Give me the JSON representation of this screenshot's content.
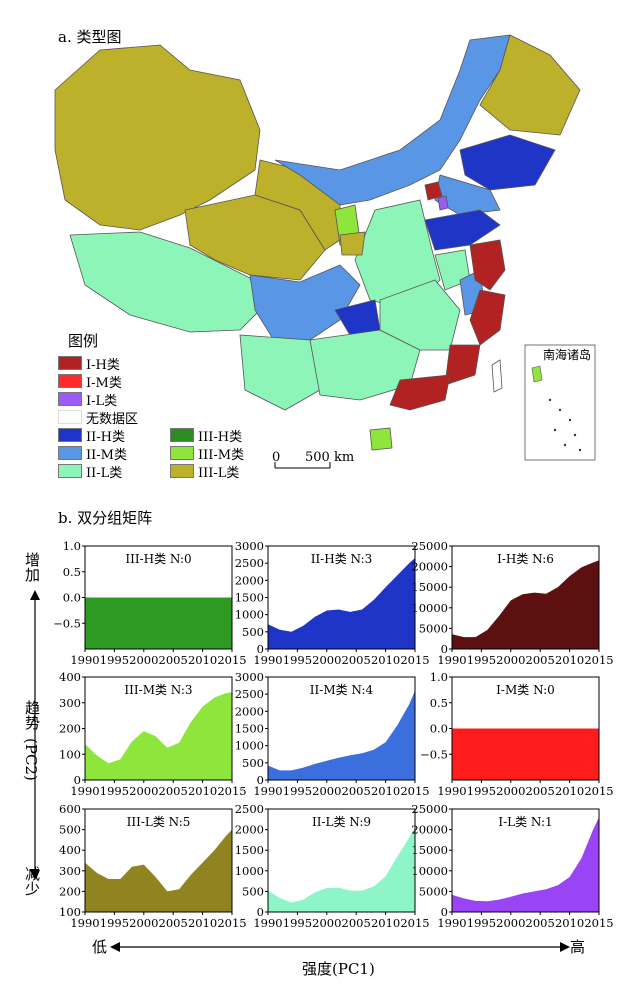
{
  "map": {
    "title": "a. 类型图",
    "legend_title": "图例",
    "inset_title": "南海诸岛",
    "scale_bar": {
      "zero": "0",
      "distance": "500 km"
    },
    "legend": [
      {
        "label": "I-H类",
        "color": "#b22222"
      },
      {
        "label": "I-M类",
        "color": "#ff2a2a"
      },
      {
        "label": "I-L类",
        "color": "#9a5cf5"
      },
      {
        "label": "无数据区",
        "color": "#ffffff"
      },
      {
        "label": "II-H类",
        "color": "#1f35c8"
      },
      {
        "label": "II-M类",
        "color": "#5a96e6"
      },
      {
        "label": "II-L类",
        "color": "#8ef5b8"
      },
      {
        "label": "III-H类",
        "color": "#2e8b22"
      },
      {
        "label": "III-M类",
        "color": "#8ee63c"
      },
      {
        "label": "III-L类",
        "color": "#bdb02a"
      }
    ]
  },
  "matrix": {
    "title": "b. 双分组矩阵",
    "y_axis": {
      "top": "增加",
      "middle": "趋势",
      "paren": "(PC2)",
      "bottom": "减少"
    },
    "x_axis": {
      "left": "低",
      "label": "强度(PC1)",
      "right": "高"
    }
  },
  "chart_data": [
    {
      "type": "area",
      "title": "III-H类   N:0",
      "color": "#2e9a24",
      "x": [
        1990,
        2015
      ],
      "values": [
        0,
        0
      ],
      "ylim": [
        -1,
        1
      ],
      "yticks": [
        -0.5,
        0,
        0.5,
        1
      ],
      "yticklabels": [
        "−0.5",
        "0.0",
        "0.5",
        "1.0"
      ],
      "baseline": -1,
      "xticks": [
        1990,
        1995,
        2000,
        2005,
        2010,
        2015
      ]
    },
    {
      "type": "area",
      "title": "II-H类   N:3",
      "color": "#1f35c8",
      "x": [
        1990,
        1992,
        1994,
        1996,
        1998,
        2000,
        2002,
        2004,
        2006,
        2008,
        2010,
        2012,
        2014,
        2015
      ],
      "values": [
        720,
        560,
        500,
        680,
        940,
        1120,
        1150,
        1080,
        1150,
        1430,
        1800,
        2150,
        2500,
        2650
      ],
      "ylim": [
        0,
        3000
      ],
      "yticks": [
        0,
        500,
        1000,
        1500,
        2000,
        2500,
        3000
      ],
      "yticklabels": [
        "0",
        "500",
        "1000",
        "1500",
        "2000",
        "2500",
        "3000"
      ],
      "baseline": 0,
      "xticks": [
        1990,
        1995,
        2000,
        2005,
        2010,
        2015
      ]
    },
    {
      "type": "area",
      "title": "I-H类   N:6",
      "color": "#5c1010",
      "x": [
        1990,
        1992,
        1994,
        1996,
        1998,
        2000,
        2002,
        2004,
        2006,
        2008,
        2010,
        2012,
        2014,
        2015
      ],
      "values": [
        3600,
        2900,
        2900,
        4600,
        8000,
        11800,
        13300,
        13700,
        13400,
        15000,
        17700,
        19800,
        21000,
        21500
      ],
      "ylim": [
        0,
        25000
      ],
      "yticks": [
        0,
        5000,
        10000,
        15000,
        20000,
        25000
      ],
      "yticklabels": [
        "0",
        "5000",
        "10000",
        "15000",
        "20000",
        "25000"
      ],
      "baseline": 0,
      "xticks": [
        1990,
        1995,
        2000,
        2005,
        2010,
        2015
      ]
    },
    {
      "type": "area",
      "title": "III-M类   N:3",
      "color": "#8ee63c",
      "x": [
        1990,
        1992,
        1994,
        1996,
        1998,
        2000,
        2002,
        2004,
        2006,
        2008,
        2010,
        2012,
        2014,
        2015
      ],
      "values": [
        140,
        95,
        65,
        80,
        150,
        190,
        170,
        125,
        145,
        225,
        285,
        320,
        338,
        340
      ],
      "ylim": [
        0,
        400
      ],
      "yticks": [
        0,
        100,
        200,
        300,
        400
      ],
      "yticklabels": [
        "0",
        "100",
        "200",
        "300",
        "400"
      ],
      "baseline": 0,
      "xticks": [
        1990,
        1995,
        2000,
        2005,
        2010,
        2015
      ]
    },
    {
      "type": "area",
      "title": "II-M类   N:4",
      "color": "#3b6fde",
      "x": [
        1990,
        1992,
        1994,
        1996,
        1998,
        2000,
        2002,
        2004,
        2006,
        2008,
        2010,
        2012,
        2014,
        2015
      ],
      "values": [
        420,
        280,
        280,
        360,
        470,
        560,
        650,
        720,
        780,
        880,
        1100,
        1600,
        2200,
        2600
      ],
      "ylim": [
        0,
        3000
      ],
      "yticks": [
        0,
        500,
        1000,
        1500,
        2000,
        2500,
        3000
      ],
      "yticklabels": [
        "0",
        "500",
        "1000",
        "1500",
        "2000",
        "2500",
        "3000"
      ],
      "baseline": 0,
      "xticks": [
        1990,
        1995,
        2000,
        2005,
        2010,
        2015
      ]
    },
    {
      "type": "area",
      "title": "I-M类   N:0",
      "color": "#ff1c1c",
      "x": [
        1990,
        2015
      ],
      "values": [
        0,
        0
      ],
      "ylim": [
        -1,
        1
      ],
      "yticks": [
        -0.5,
        0,
        0.5,
        1
      ],
      "yticklabels": [
        "−0.5",
        "0.0",
        "0.5",
        "1.0"
      ],
      "baseline": -1,
      "xticks": [
        1990,
        1995,
        2000,
        2005,
        2010,
        2015
      ]
    },
    {
      "type": "area",
      "title": "III-L类   N:5",
      "color": "#8f8420",
      "x": [
        1990,
        1992,
        1994,
        1996,
        1998,
        2000,
        2002,
        2004,
        2006,
        2008,
        2010,
        2012,
        2014,
        2015
      ],
      "values": [
        340,
        290,
        260,
        260,
        320,
        330,
        270,
        200,
        210,
        280,
        340,
        400,
        470,
        500
      ],
      "ylim": [
        100,
        600
      ],
      "yticks": [
        100,
        200,
        300,
        400,
        500,
        600
      ],
      "yticklabels": [
        "100",
        "200",
        "300",
        "400",
        "500",
        "600"
      ],
      "baseline": 100,
      "xticks": [
        1990,
        1995,
        2000,
        2005,
        2010,
        2015
      ]
    },
    {
      "type": "area",
      "title": "II-L类   N:9",
      "color": "#8ef5c8",
      "x": [
        1990,
        1992,
        1994,
        1996,
        1998,
        2000,
        2002,
        2004,
        2006,
        2008,
        2010,
        2012,
        2014,
        2015
      ],
      "values": [
        520,
        340,
        230,
        300,
        480,
        580,
        590,
        520,
        520,
        620,
        870,
        1350,
        1800,
        2050
      ],
      "ylim": [
        0,
        2500
      ],
      "yticks": [
        0,
        500,
        1000,
        1500,
        2000,
        2500
      ],
      "yticklabels": [
        "0",
        "500",
        "1000",
        "1500",
        "2000",
        "2500"
      ],
      "baseline": 0,
      "xticks": [
        1990,
        1995,
        2000,
        2005,
        2010,
        2015
      ]
    },
    {
      "type": "area",
      "title": "I-L类   N:1",
      "color": "#9a45f5",
      "x": [
        1990,
        1992,
        1994,
        1996,
        1998,
        2000,
        2002,
        2004,
        2006,
        2008,
        2010,
        2012,
        2014,
        2015
      ],
      "values": [
        4200,
        3300,
        2700,
        2600,
        3000,
        3700,
        4500,
        5000,
        5500,
        6500,
        8500,
        13000,
        20000,
        23000
      ],
      "ylim": [
        0,
        25000
      ],
      "yticks": [
        0,
        5000,
        10000,
        15000,
        20000,
        25000
      ],
      "yticklabels": [
        "0",
        "5000",
        "10000",
        "15000",
        "20000",
        "25000"
      ],
      "baseline": 0,
      "xticks": [
        1990,
        1995,
        2000,
        2005,
        2010,
        2015
      ]
    }
  ]
}
